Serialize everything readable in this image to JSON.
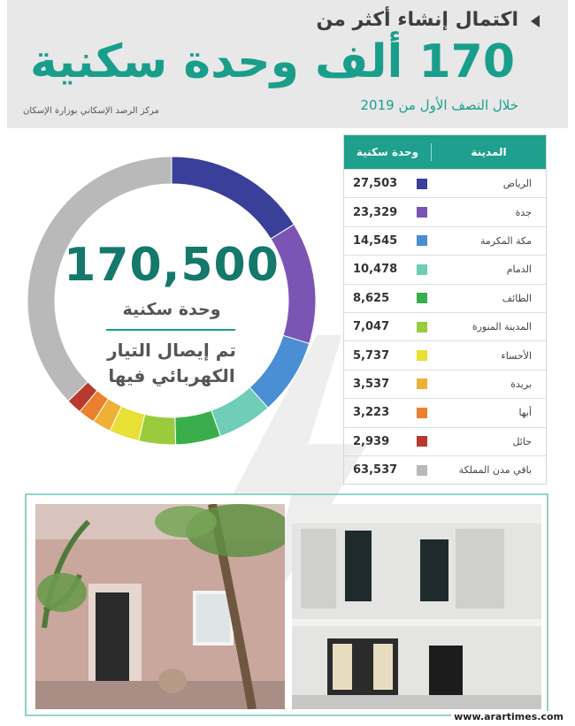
{
  "header": {
    "subtitle": "اكتمال إنشاء أكثر من",
    "title": "170 ألف وحدة سكنية",
    "period": "خلال النصف الأول من 2019",
    "source": "مركز الرصد الإسكاني بوزارة الإسكان"
  },
  "center": {
    "total": "170,500",
    "total_label": "وحدة سكنية",
    "note_line1": "تم إيصال التيار",
    "note_line2": "الكهربائي فيها"
  },
  "table": {
    "col_units": "وحدة سكنية",
    "col_city": "المدينة"
  },
  "chart_data": {
    "type": "pie",
    "title": "",
    "series": [
      {
        "name": "الرياض",
        "value": 27503,
        "label": "27,503",
        "color": "#3a3f9a"
      },
      {
        "name": "جدة",
        "value": 23329,
        "label": "23,329",
        "color": "#7b55b3"
      },
      {
        "name": "مكة المكرمة",
        "value": 14545,
        "label": "14,545",
        "color": "#4a8fd4"
      },
      {
        "name": "الدمام",
        "value": 10478,
        "label": "10,478",
        "color": "#6fcdb8"
      },
      {
        "name": "الطائف",
        "value": 8625,
        "label": "8,625",
        "color": "#3aae4a"
      },
      {
        "name": "المدينة المنورة",
        "value": 7047,
        "label": "7,047",
        "color": "#9acb3c"
      },
      {
        "name": "الأحساء",
        "value": 5737,
        "label": "5,737",
        "color": "#e8e034"
      },
      {
        "name": "بريدة",
        "value": 3537,
        "label": "3,537",
        "color": "#efb036"
      },
      {
        "name": "أبها",
        "value": 3223,
        "label": "3,223",
        "color": "#ec7f2c"
      },
      {
        "name": "حائل",
        "value": 2939,
        "label": "2,939",
        "color": "#b8392f"
      },
      {
        "name": "باقي مدن المملكة",
        "value": 63537,
        "label": "63,537",
        "color": "#b9b9b9"
      }
    ]
  },
  "watermark": "www.arartimes.com"
}
